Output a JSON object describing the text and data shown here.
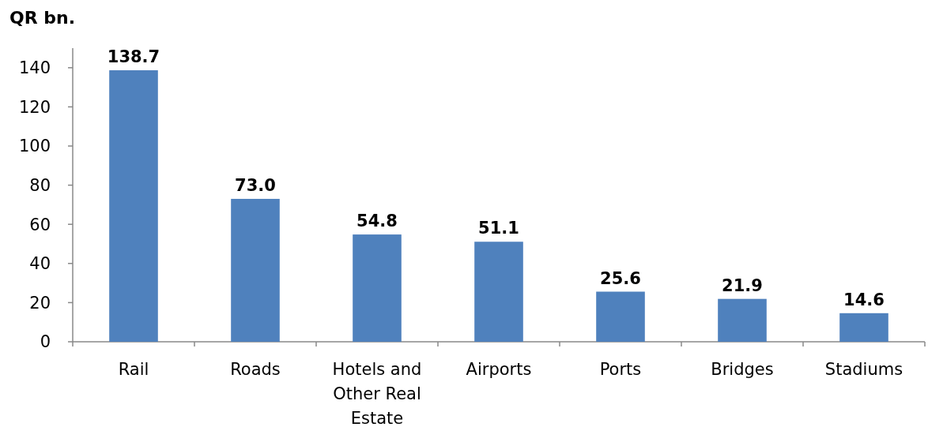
{
  "chart_data": {
    "type": "bar",
    "title": "QR bn.",
    "categories": [
      "Rail",
      "Roads",
      "Hotels and Other Real Estate",
      "Airports",
      "Ports",
      "Bridges",
      "Stadiums"
    ],
    "values": [
      138.7,
      73.0,
      54.8,
      51.1,
      25.6,
      21.9,
      14.6
    ],
    "value_labels": [
      "138.7",
      "73.0",
      "54.8",
      "51.1",
      "25.6",
      "21.9",
      "14.6"
    ],
    "color": "#4f81bd",
    "ylim": [
      0,
      150
    ],
    "yticks": [
      0,
      20,
      40,
      60,
      80,
      100,
      120,
      140
    ],
    "grid": false
  }
}
